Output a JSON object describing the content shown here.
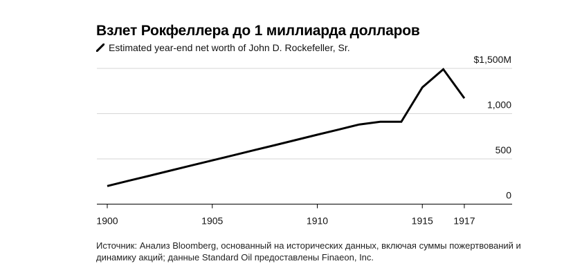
{
  "chart_data": {
    "type": "line",
    "title": "Взлет Рокфеллера до 1 миллиарда долларов",
    "series": [
      {
        "name": "Estimated year-end net worth of John D. Rockefeller, Sr.",
        "color": "#000000",
        "x": [
          1900,
          1901,
          1902,
          1903,
          1904,
          1905,
          1906,
          1907,
          1908,
          1909,
          1910,
          1911,
          1912,
          1913,
          1914,
          1915,
          1916,
          1917
        ],
        "y": [
          200,
          257,
          313,
          370,
          427,
          483,
          540,
          597,
          653,
          710,
          767,
          823,
          880,
          910,
          910,
          1290,
          1490,
          1170
        ]
      }
    ],
    "xlim": [
      1899.5,
      1919.2
    ],
    "ylim": [
      0,
      1500
    ],
    "x_ticks": [
      1900,
      1905,
      1910,
      1915,
      1917
    ],
    "x_tick_labels": [
      "1900",
      "1905",
      "1910",
      "1915",
      "1917"
    ],
    "y_ticks": [
      0,
      500,
      1000,
      1500
    ],
    "y_tick_labels": [
      "0",
      "500",
      "1,000",
      "$1,500M"
    ],
    "grid": "horizontal",
    "legend_placement": "top-left",
    "source": "Источник: Анализ Bloomberg, основанный на исторических данных, включая суммы пожертвований и динамику акций; данные Standard Oil предоставлены Finaeon, Inc."
  }
}
